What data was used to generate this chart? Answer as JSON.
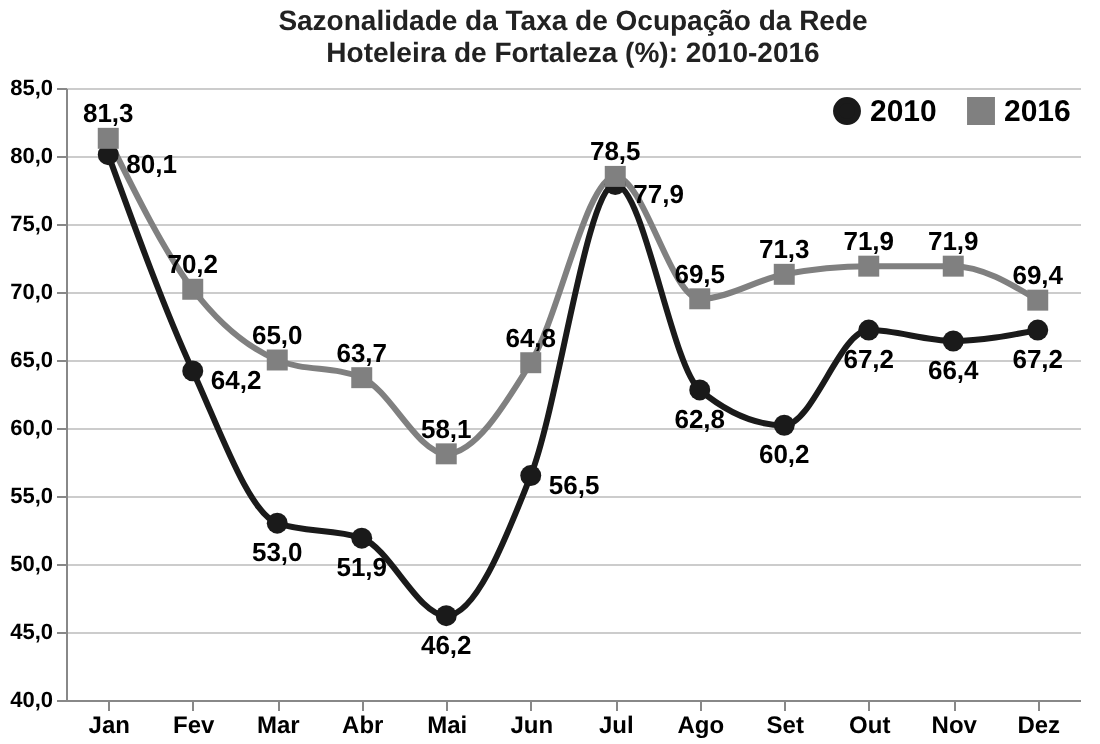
{
  "chart_data": {
    "type": "line",
    "title": [
      "Sazonalidade da Taxa de Ocupação da Rede",
      "Hoteleira de Fortaleza (%): 2010-2016"
    ],
    "categories": [
      "Jan",
      "Fev",
      "Mar",
      "Abr",
      "Mai",
      "Jun",
      "Jul",
      "Ago",
      "Set",
      "Out",
      "Nov",
      "Dez"
    ],
    "series": [
      {
        "name": "2010",
        "color": "#1a1a1a",
        "marker": "circle",
        "values": [
          80.1,
          64.2,
          53.0,
          51.9,
          46.2,
          56.5,
          77.9,
          62.8,
          60.2,
          67.2,
          66.4,
          67.2
        ],
        "value_labels": [
          "80,1",
          "64,2",
          "53,0",
          "51,9",
          "46,2",
          "56,5",
          "77,9",
          "62,8",
          "60,2",
          "67,2",
          "66,4",
          "67,2"
        ]
      },
      {
        "name": "2016",
        "color": "#808080",
        "marker": "square",
        "values": [
          81.3,
          70.2,
          65.0,
          63.7,
          58.1,
          64.8,
          78.5,
          69.5,
          71.3,
          71.9,
          71.9,
          69.4
        ],
        "value_labels": [
          "81,3",
          "70,2",
          "65,0",
          "63,7",
          "58,1",
          "64,8",
          "78,5",
          "69,5",
          "71,3",
          "71,9",
          "71,9",
          "69,4"
        ]
      }
    ],
    "ylim": [
      40,
      85
    ],
    "yticks": [
      {
        "value": 40,
        "label": "40,0"
      },
      {
        "value": 45,
        "label": "45,0"
      },
      {
        "value": 50,
        "label": "50,0"
      },
      {
        "value": 55,
        "label": "55,0"
      },
      {
        "value": 60,
        "label": "60,0"
      },
      {
        "value": 65,
        "label": "65,0"
      },
      {
        "value": 70,
        "label": "70,0"
      },
      {
        "value": 75,
        "label": "75,0"
      },
      {
        "value": 80,
        "label": "80,0"
      },
      {
        "value": 85,
        "label": "85,0"
      }
    ],
    "grid": "y",
    "legend": "top right",
    "line_style": "solid"
  }
}
